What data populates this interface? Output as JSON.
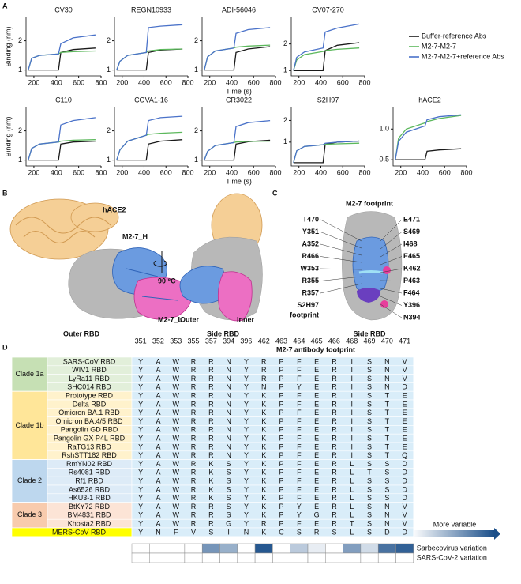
{
  "panel_labels": [
    "A",
    "B",
    "C",
    "D"
  ],
  "chart_data": [
    {
      "type": "line",
      "title": "CV30",
      "ylabel": "Binding (nm)",
      "x": [
        150,
        180,
        250,
        420,
        440,
        550,
        750
      ],
      "xlim": [
        130,
        800
      ],
      "xticks": [
        200,
        400,
        600,
        800
      ],
      "ylim": [
        0.8,
        2.8
      ],
      "yticks": [
        1,
        2
      ],
      "series": [
        {
          "color": "#1a1a1a",
          "values": [
            1,
            1,
            1,
            1,
            1.6,
            1.7,
            1.75
          ]
        },
        {
          "color": "#5cb85c",
          "values": [
            1,
            1.4,
            1.5,
            1.55,
            1.6,
            1.63,
            1.65
          ]
        },
        {
          "color": "#4a72c9",
          "values": [
            1,
            1.4,
            1.5,
            1.55,
            1.9,
            2.1,
            2.2
          ]
        }
      ]
    },
    {
      "type": "line",
      "title": "REGN10933",
      "x": [
        150,
        180,
        250,
        420,
        440,
        550,
        750
      ],
      "xlim": [
        130,
        800
      ],
      "xticks": [
        200,
        400,
        600,
        800
      ],
      "ylim": [
        0.8,
        2.8
      ],
      "yticks": [
        1,
        2
      ],
      "series": [
        {
          "color": "#1a1a1a",
          "values": [
            1,
            1,
            1,
            1,
            1.6,
            1.68,
            1.72
          ]
        },
        {
          "color": "#5cb85c",
          "values": [
            1,
            1.3,
            1.5,
            1.6,
            1.65,
            1.7,
            1.72
          ]
        },
        {
          "color": "#4a72c9",
          "values": [
            1,
            1.3,
            1.5,
            1.6,
            2.45,
            2.5,
            2.55
          ]
        }
      ]
    },
    {
      "type": "line",
      "title": "ADI-56046",
      "xlabel": "Time (s)",
      "x": [
        150,
        180,
        250,
        420,
        440,
        550,
        750
      ],
      "xlim": [
        130,
        800
      ],
      "xticks": [
        200,
        400,
        600,
        800
      ],
      "ylim": [
        0.8,
        2.8
      ],
      "yticks": [
        1,
        2
      ],
      "series": [
        {
          "color": "#1a1a1a",
          "values": [
            1,
            1,
            1,
            1,
            1.6,
            1.72,
            1.8
          ]
        },
        {
          "color": "#5cb85c",
          "values": [
            1,
            1.45,
            1.65,
            1.75,
            1.78,
            1.82,
            1.85
          ]
        },
        {
          "color": "#4a72c9",
          "values": [
            1,
            1.45,
            1.65,
            1.75,
            2.25,
            2.38,
            2.45
          ]
        }
      ]
    },
    {
      "type": "line",
      "title": "CV07-270",
      "x": [
        150,
        180,
        250,
        420,
        440,
        550,
        750
      ],
      "xlim": [
        130,
        800
      ],
      "xticks": [
        200,
        400,
        600,
        800
      ],
      "ylim": [
        0.8,
        3
      ],
      "yticks": [
        1,
        2
      ],
      "series": [
        {
          "name": "Buffer-reference Abs",
          "color": "#1a1a1a",
          "values": [
            1,
            1,
            1,
            1,
            1.75,
            1.95,
            2.05
          ]
        },
        {
          "name": "M2-7-M2-7",
          "color": "#5cb85c",
          "values": [
            1,
            1.4,
            1.6,
            1.72,
            1.75,
            1.8,
            1.85
          ]
        },
        {
          "name": "M2-7-M2-7+reference Abs",
          "color": "#4a72c9",
          "values": [
            1,
            1.5,
            1.7,
            1.85,
            2.45,
            2.6,
            2.75
          ]
        }
      ]
    },
    {
      "type": "line",
      "title": "C110",
      "ylabel": "Binding (nm)",
      "x": [
        150,
        180,
        250,
        420,
        440,
        550,
        750
      ],
      "xlim": [
        130,
        800
      ],
      "xticks": [
        200,
        400,
        600,
        800
      ],
      "ylim": [
        0.8,
        2.8
      ],
      "yticks": [
        1,
        2
      ],
      "series": [
        {
          "color": "#1a1a1a",
          "values": [
            1,
            1,
            1,
            1,
            1.55,
            1.62,
            1.65
          ]
        },
        {
          "color": "#5cb85c",
          "values": [
            1,
            1.4,
            1.55,
            1.62,
            1.65,
            1.68,
            1.7
          ]
        },
        {
          "color": "#4a72c9",
          "values": [
            1,
            1.4,
            1.55,
            1.62,
            2.2,
            2.35,
            2.45
          ]
        }
      ]
    },
    {
      "type": "line",
      "title": "COVA1-16",
      "x": [
        150,
        180,
        250,
        420,
        440,
        550,
        750
      ],
      "xlim": [
        130,
        800
      ],
      "xticks": [
        200,
        400,
        600,
        800
      ],
      "ylim": [
        0.8,
        2.8
      ],
      "yticks": [
        1,
        2
      ],
      "series": [
        {
          "color": "#1a1a1a",
          "values": [
            1,
            1,
            1,
            1,
            1.55,
            1.65,
            1.7
          ]
        },
        {
          "color": "#5cb85c",
          "values": [
            1,
            1.35,
            1.65,
            1.85,
            1.88,
            1.92,
            1.95
          ]
        },
        {
          "color": "#4a72c9",
          "values": [
            1,
            1.35,
            1.65,
            1.85,
            2.35,
            2.45,
            2.5
          ]
        }
      ]
    },
    {
      "type": "line",
      "title": "CR3022",
      "xlabel": "Time (s)",
      "x": [
        150,
        180,
        250,
        420,
        440,
        550,
        750
      ],
      "xlim": [
        130,
        800
      ],
      "xticks": [
        200,
        400,
        600,
        800
      ],
      "ylim": [
        0.8,
        2.8
      ],
      "yticks": [
        1,
        2
      ],
      "series": [
        {
          "color": "#1a1a1a",
          "values": [
            1,
            1,
            1,
            1,
            1.55,
            1.63,
            1.68
          ]
        },
        {
          "color": "#5cb85c",
          "values": [
            1,
            1.3,
            1.5,
            1.6,
            1.62,
            1.64,
            1.65
          ]
        },
        {
          "color": "#4a72c9",
          "values": [
            1,
            1.3,
            1.5,
            1.6,
            2.15,
            2.28,
            2.35
          ]
        }
      ]
    },
    {
      "type": "line",
      "title": "S2H97",
      "x": [
        150,
        180,
        250,
        420,
        440,
        550,
        750
      ],
      "xlim": [
        130,
        800
      ],
      "xticks": [
        200,
        400,
        600,
        800
      ],
      "ylim": [
        -0.1,
        2.6
      ],
      "yticks": [
        1,
        2
      ],
      "series": [
        {
          "color": "#1a1a1a",
          "values": [
            0.05,
            0.05,
            0.05,
            0.05,
            0.9,
            1,
            1.05
          ]
        },
        {
          "color": "#5cb85c",
          "values": [
            0.05,
            0.6,
            0.8,
            0.88,
            0.9,
            0.92,
            0.95
          ]
        },
        {
          "color": "#4a72c9",
          "values": [
            0.05,
            0.6,
            0.8,
            0.88,
            0.95,
            1,
            1.05
          ]
        }
      ]
    },
    {
      "type": "line",
      "title": "hACE2",
      "x": [
        150,
        180,
        250,
        420,
        440,
        550,
        750
      ],
      "xlim": [
        130,
        800
      ],
      "xticks": [
        200,
        400,
        600,
        800
      ],
      "ylim": [
        0.4,
        1.35
      ],
      "yticks": [
        0.5,
        {
          "value": 1,
          "label": "1.0"
        }
      ],
      "series": [
        {
          "color": "#1a1a1a",
          "values": [
            0.5,
            0.5,
            0.5,
            0.5,
            0.64,
            0.66,
            0.68
          ]
        },
        {
          "color": "#5cb85c",
          "values": [
            0.5,
            0.85,
            1,
            1.1,
            1.12,
            1.17,
            1.22
          ]
        },
        {
          "color": "#4a72c9",
          "values": [
            0.5,
            0.8,
            0.95,
            1.05,
            1.15,
            1.2,
            1.23
          ]
        }
      ]
    }
  ],
  "panel_b": {
    "hace2": "hACE2",
    "heavy": "M2-7_H",
    "rotation": "90 °C",
    "light": "M2-7_L",
    "outer_rbd": "Outer RBD",
    "outer": "Outer",
    "inner": "Inner",
    "side_rbd": "Side RBD"
  },
  "panel_c": {
    "title": "M2-7 footprint",
    "caption": "Side RBD",
    "left": [
      {
        "text": "T470",
        "color": "#3b8fd4"
      },
      {
        "text": "Y351",
        "color": "#3b8fd4"
      },
      {
        "text": "A352",
        "color": "#3b8fd4"
      },
      {
        "text": "R466",
        "color": "#3b8fd4"
      },
      {
        "text": "W353",
        "color": "#3b8fd4"
      },
      {
        "text": "R355",
        "color": "#3b8fd4"
      },
      {
        "text": "R357",
        "color": "#7030a0"
      },
      {
        "text": "S2H97",
        "color": "#00a651"
      },
      {
        "text": "footprint",
        "color": "#00a651"
      }
    ],
    "right": [
      {
        "text": "E471",
        "color": "#3b8fd4"
      },
      {
        "text": "S469",
        "color": "#3b8fd4"
      },
      {
        "text": "I468",
        "color": "#3b8fd4"
      },
      {
        "text": "E465",
        "color": "#3b8fd4"
      },
      {
        "text": "K462",
        "color": "#e83e9c"
      },
      {
        "text": "P463",
        "color": "#3b8fd4"
      },
      {
        "text": "F464",
        "color": "#3b8fd4"
      },
      {
        "text": "Y396",
        "color": "#7030a0"
      },
      {
        "text": "N394",
        "color": "#e83e9c"
      }
    ]
  },
  "panel_d": {
    "title": "M2-7 antibody footprint",
    "positions": [
      351,
      352,
      353,
      355,
      357,
      394,
      396,
      462,
      463,
      464,
      465,
      466,
      468,
      469,
      470,
      471
    ],
    "clades": [
      {
        "name": "Clade 1a",
        "color": "#c6e0b4",
        "row_color": "#e2efda",
        "rows": [
          {
            "name": "SARS-CoV RBD",
            "residues": "YAWRRNYRPFERISNV"
          },
          {
            "name": "WIV1 RBD",
            "residues": "YAWRRNYRPFERISNV"
          },
          {
            "name": "LyRa11 RBD",
            "residues": "YAWRRNYRPFERISNV"
          },
          {
            "name": "SHC014 RBD",
            "residues": "YAWRRNYNPYERISND"
          }
        ]
      },
      {
        "name": "Clade 1b",
        "color": "#ffe699",
        "row_color": "#fff2cc",
        "rows": [
          {
            "name": "Prototype RBD",
            "residues": "YAWRRNYKPFERISTE"
          },
          {
            "name": "Delta RBD",
            "residues": "YAWRRNYKPFERISTE"
          },
          {
            "name": "Omicron BA.1 RBD",
            "residues": "YAWRRNYKPFERISTE"
          },
          {
            "name": "Omicron BA.4/5 RBD",
            "residues": "YAWRRNYKPFERISTE"
          },
          {
            "name": "Pangolin GD RBD",
            "residues": "YAWRRNYKPFERISTE"
          },
          {
            "name": "Pangolin GX P4L RBD",
            "residues": "YAWRRNYKPFERISTE"
          },
          {
            "name": "RaTG13 RBD",
            "residues": "YAWRRNYKPFERISTE"
          },
          {
            "name": "RshSTT182 RBD",
            "residues": "YAWRRNYKPFERISTQ"
          }
        ]
      },
      {
        "name": "Clade 2",
        "color": "#bdd7ee",
        "row_color": "#ddebf7",
        "rows": [
          {
            "name": "RmYN02 RBD",
            "residues": "YAWRKSYKPFERLSSD"
          },
          {
            "name": "Rs4081 RBD",
            "residues": "YAWRKSYKPFERLTSD"
          },
          {
            "name": "Rf1 RBD",
            "residues": "YAWRKSYKPFERLSSD"
          },
          {
            "name": "As6526 RBD",
            "residues": "YAWRKSYKPFERLSSD"
          },
          {
            "name": "HKU3-1 RBD",
            "residues": "YAWRKSYKPFERLSSD"
          }
        ]
      },
      {
        "name": "Clade 3",
        "color": "#f8cbad",
        "row_color": "#fce4d6",
        "rows": [
          {
            "name": "BtKY72 RBD",
            "residues": "YAWRRSYKPYERLSNV"
          },
          {
            "name": "BM4831 RBD",
            "residues": "YAWRRSYKPYGRLSNV"
          },
          {
            "name": "Khosta2 RBD",
            "residues": "YAWRRGYRPFERTSNV"
          }
        ]
      }
    ],
    "outgroup": {
      "name": "MERS-CoV RBD",
      "color": "#ffff00",
      "residues": "YNFVSINKCSRSLSDD"
    },
    "heatmap": {
      "legend": "More variable",
      "color": "#1b4f8a",
      "rows": [
        {
          "name": "Sarbecovirus variation",
          "values": [
            0,
            0,
            0,
            0,
            0.6,
            0.45,
            0,
            0.95,
            0,
            0.3,
            0.1,
            0,
            0.55,
            0.2,
            0.8,
            0.9
          ]
        },
        {
          "name": "SARS-CoV-2 variation",
          "values": [
            0,
            0,
            0,
            0,
            0,
            0,
            0,
            0,
            0,
            0,
            0,
            0,
            0,
            0,
            0,
            0
          ]
        }
      ]
    }
  }
}
